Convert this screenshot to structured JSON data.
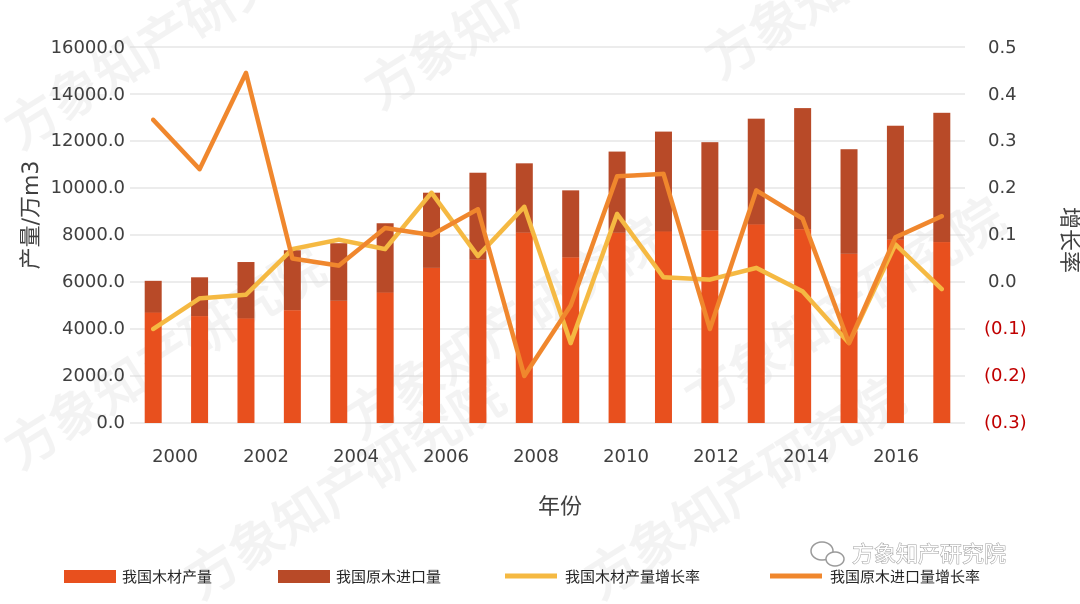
{
  "chart_data": {
    "type": "bar",
    "title": "",
    "xlabel": "年份",
    "ylabel_left": "产量/万m3",
    "ylabel_right": "增长率",
    "ylim_left": [
      0,
      16000
    ],
    "ylim_right": [
      -0.3,
      0.5
    ],
    "left_ticks": [
      "16000.0",
      "14000.0",
      "12000.0",
      "10000.0",
      "8000.0",
      "6000.0",
      "4000.0",
      "2000.0",
      "0.0"
    ],
    "right_ticks": [
      "0.5",
      "0.4",
      "0.3",
      "0.2",
      "0.1",
      "0.0",
      "(0.1)",
      "(0.2)",
      "(0.3)"
    ],
    "x_tick_labels": [
      "2000",
      "2002",
      "2004",
      "2006",
      "2008",
      "2010",
      "2012",
      "2014",
      "2016"
    ],
    "categories": [
      "2000",
      "2001",
      "2002",
      "2003",
      "2004",
      "2005",
      "2006",
      "2007",
      "2008",
      "2009",
      "2010",
      "2011",
      "2012",
      "2013",
      "2014",
      "2015",
      "2016",
      "2017"
    ],
    "series": [
      {
        "name": "我国木材产量",
        "type": "stacked-bar",
        "axis": "left",
        "color": "#e8501e",
        "values": [
          4700,
          4550,
          4450,
          4800,
          5200,
          5550,
          6600,
          6950,
          8100,
          7050,
          8100,
          8150,
          8200,
          8450,
          8250,
          7200,
          7800,
          7700
        ]
      },
      {
        "name": "我国原木进口量",
        "type": "stacked-bar",
        "axis": "left",
        "color": "#b84a28",
        "values": [
          1350,
          1650,
          2400,
          2550,
          2450,
          2950,
          3200,
          3700,
          2950,
          2850,
          3450,
          4250,
          3750,
          4500,
          5150,
          4450,
          4850,
          5500
        ]
      },
      {
        "name": "我国木材产量增长率",
        "type": "line",
        "axis": "right",
        "color": "#f5b942",
        "values": [
          -0.1,
          -0.035,
          -0.027,
          0.07,
          0.09,
          0.07,
          0.19,
          0.055,
          0.16,
          -0.13,
          0.145,
          0.01,
          0.005,
          0.03,
          -0.02,
          -0.13,
          0.08,
          -0.015
        ]
      },
      {
        "name": "我国原木进口量增长率",
        "type": "line",
        "axis": "right",
        "color": "#f0872d",
        "values": [
          0.345,
          0.24,
          0.445,
          0.05,
          0.035,
          0.115,
          0.1,
          0.155,
          -0.2,
          -0.05,
          0.225,
          0.23,
          -0.1,
          0.195,
          0.135,
          -0.13,
          0.095,
          0.14
        ]
      }
    ],
    "legend_position": "bottom"
  },
  "watermark": {
    "text": "方象知产研究院",
    "brand_label": "方象知产研究院",
    "brand_icon": "wechat-icon"
  }
}
